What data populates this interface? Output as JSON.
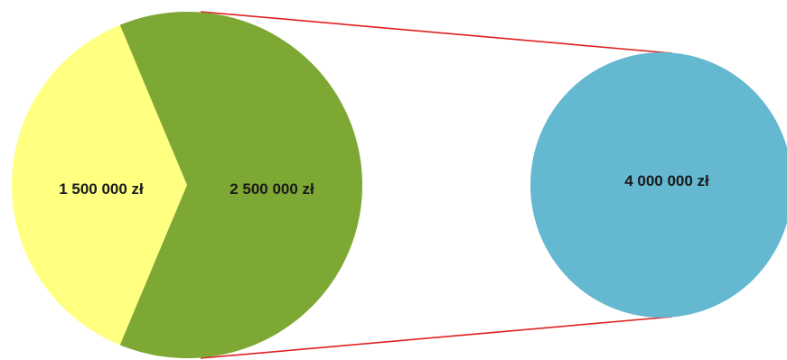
{
  "chart_data": {
    "type": "pie",
    "pie": {
      "slices": [
        {
          "value": 1500000,
          "label": "1 500 000 zł",
          "color": "#FFFF80"
        },
        {
          "value": 2500000,
          "label": "2 500 000 zł",
          "color": "#7EA834"
        }
      ]
    },
    "total": {
      "value": 4000000,
      "label": "4 000 000 zł",
      "color": "#64B8D0"
    },
    "connector_color": "#E02020"
  }
}
